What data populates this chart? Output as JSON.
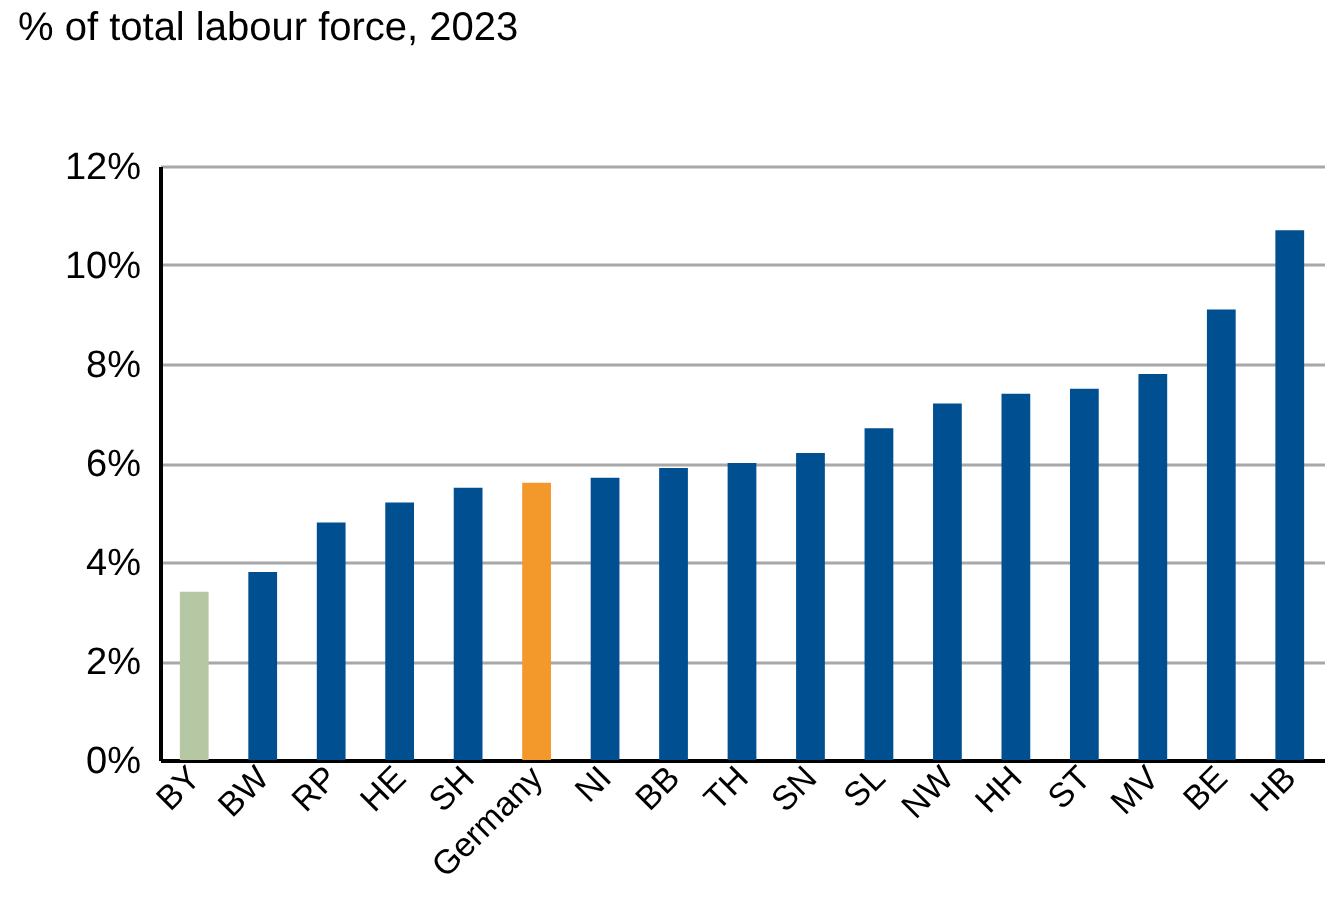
{
  "chart_data": {
    "type": "bar",
    "title": "% of total labour force, 2023",
    "categories": [
      "BY",
      "BW",
      "RP",
      "HE",
      "SH",
      "Germany",
      "NI",
      "BB",
      "TH",
      "SN",
      "SL",
      "NW",
      "HH",
      "ST",
      "MV",
      "BE",
      "HB"
    ],
    "values": [
      3.4,
      3.8,
      4.8,
      5.2,
      5.5,
      5.6,
      5.7,
      5.9,
      6.0,
      6.2,
      6.7,
      7.2,
      7.4,
      7.5,
      7.8,
      9.1,
      10.7
    ],
    "colors": [
      "#b5c8a3",
      "#004f91",
      "#004f91",
      "#004f91",
      "#004f91",
      "#f3982a",
      "#004f91",
      "#004f91",
      "#004f91",
      "#004f91",
      "#004f91",
      "#004f91",
      "#004f91",
      "#004f91",
      "#004f91",
      "#004f91",
      "#004f91"
    ],
    "ylim": [
      0,
      12
    ],
    "yticks": [
      {
        "value": 0,
        "label": "0%"
      },
      {
        "value": 2,
        "label": "2%"
      },
      {
        "value": 4,
        "label": "4%"
      },
      {
        "value": 6,
        "label": "6%"
      },
      {
        "value": 8,
        "label": "8%"
      },
      {
        "value": 10,
        "label": "10%"
      },
      {
        "value": 12,
        "label": "12%"
      }
    ],
    "grid": "y"
  }
}
